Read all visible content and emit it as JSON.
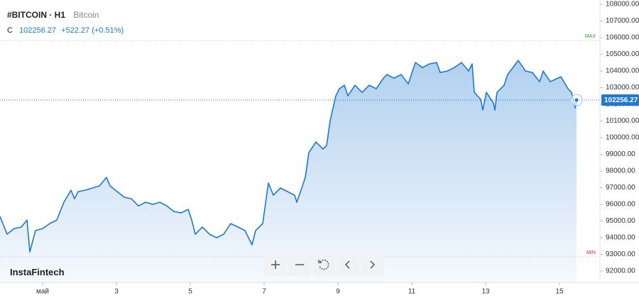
{
  "chart_data": {
    "type": "line",
    "title": "#BITCOIN · H1",
    "subtitle": "Bitcoin",
    "quote": {
      "label": "C",
      "price": "102256.27",
      "change": "+522.27",
      "change_pct": "(+0.51%)"
    },
    "brand": "InstaFintech",
    "color": "#1f78d1",
    "x": [
      -0.154,
      0.038,
      0.231,
      0.423,
      0.577,
      0.654,
      0.808,
      1,
      1.192,
      1.385,
      1.577,
      1.769,
      1.865,
      1.962,
      2.154,
      2.346,
      2.538,
      2.731,
      2.827,
      3.019,
      3.212,
      3.404,
      3.596,
      3.788,
      3.981,
      4.173,
      4.365,
      4.558,
      4.75,
      4.942,
      5.038,
      5.135,
      5.327,
      5.519,
      5.712,
      5.904,
      6.096,
      6.288,
      6.481,
      6.673,
      6.769,
      6.962,
      7.115,
      7.25,
      7.442,
      7.635,
      7.827,
      7.885,
      8.019,
      8.115,
      8.212,
      8.404,
      8.596,
      8.692,
      8.788,
      8.942,
      9.038,
      9.173,
      9.269,
      9.462,
      9.654,
      9.846,
      10.038,
      10.231,
      10.327,
      10.519,
      10.712,
      10.904,
      11.096,
      11.288,
      11.481,
      11.673,
      11.769,
      11.962,
      12.154,
      12.346,
      12.538,
      12.635,
      12.692,
      12.865,
      12.923,
      13.019,
      13.212,
      13.25,
      13.308,
      13.5,
      13.596,
      13.885,
      14.077,
      14.269,
      14.462,
      14.558,
      14.75,
      15.038,
      15.231,
      15.327,
      15.423,
      15.462
    ],
    "values": [
      95280,
      94210,
      94550,
      94640,
      95060,
      93150,
      94430,
      94550,
      94850,
      95060,
      96130,
      96850,
      96340,
      96770,
      96850,
      96980,
      97110,
      97620,
      97110,
      96770,
      96430,
      96340,
      95910,
      96130,
      96000,
      96130,
      95910,
      95570,
      95490,
      95700,
      95060,
      94210,
      94640,
      94210,
      94000,
      94210,
      94850,
      94640,
      94430,
      93570,
      94430,
      94850,
      97280,
      96550,
      96980,
      96770,
      96550,
      96130,
      96980,
      97620,
      99110,
      99740,
      99320,
      99530,
      101020,
      102510,
      102940,
      103150,
      102510,
      103150,
      102720,
      103150,
      102940,
      103570,
      103790,
      103570,
      103790,
      103230,
      104510,
      104210,
      104430,
      104510,
      103910,
      104000,
      104210,
      104510,
      104000,
      104430,
      102720,
      102300,
      101660,
      102720,
      102090,
      101660,
      102720,
      103150,
      103790,
      104640,
      104000,
      103910,
      103360,
      104000,
      103360,
      103660,
      102940,
      102720,
      101790,
      102256.27
    ],
    "xlim": [
      -0.154,
      16.096
    ],
    "ylim": [
      91320,
      108260
    ],
    "xticks": [
      {
        "value": 1,
        "label": "май"
      },
      3,
      5,
      7,
      9,
      11,
      13,
      15
    ],
    "yticks": [
      {
        "value": 92000,
        "label": "92000.00"
      },
      {
        "value": 93000,
        "label": "93000.00"
      },
      {
        "value": 94000,
        "label": "94000.00"
      },
      {
        "value": 95000,
        "label": "95000.00"
      },
      {
        "value": 96000,
        "label": "96000.00"
      },
      {
        "value": 97000,
        "label": "97000.00"
      },
      {
        "value": 98000,
        "label": "98000.00"
      },
      {
        "value": 99000,
        "label": "99000.00"
      },
      {
        "value": 100000,
        "label": "100000.00"
      },
      {
        "value": 101000,
        "label": "101000.00"
      },
      {
        "value": 102000,
        "label": "102000.00"
      },
      {
        "value": 103000,
        "label": "103000.00"
      },
      {
        "value": 104000,
        "label": "104000.00"
      },
      {
        "value": 105000,
        "label": "105000.00"
      },
      {
        "value": 106000,
        "label": "106000.00"
      },
      {
        "value": 107000,
        "label": "107000.00"
      },
      {
        "value": 108000,
        "label": "108000.00"
      }
    ],
    "max_line": {
      "value": 105830,
      "label": "MAX",
      "color": "#2ca02c"
    },
    "min_line": {
      "value": 92850,
      "label": "MIN",
      "color": "#d62728"
    },
    "grid": false
  }
}
